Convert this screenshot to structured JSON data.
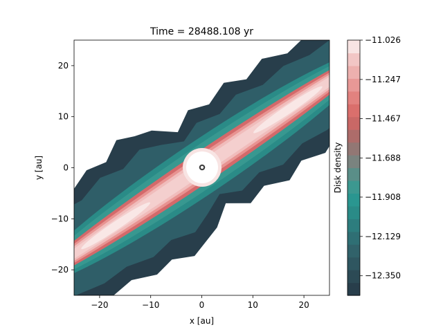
{
  "chart_data": {
    "type": "heatmap",
    "title": "Time = 28488.108 yr",
    "xlabel": "x [au]",
    "ylabel": "y [au]",
    "xlim": [
      -25,
      25
    ],
    "ylim": [
      -25,
      25
    ],
    "xticks": [
      -20,
      -10,
      0,
      10,
      20
    ],
    "yticks": [
      -20,
      -10,
      0,
      10,
      20
    ],
    "xtick_labels": [
      "−20",
      "−10",
      "0",
      "10",
      "20"
    ],
    "ytick_labels": [
      "−20",
      "−10",
      "0",
      "10",
      "20"
    ],
    "colorbar": {
      "label": "Disk density",
      "range": [
        -12.46,
        -11.026
      ],
      "ticks": [
        -11.026,
        -11.247,
        -11.467,
        -11.688,
        -11.908,
        -12.129,
        -12.35
      ],
      "tick_labels": [
        "−11.026",
        "−11.247",
        "−11.467",
        "−11.688",
        "−11.908",
        "−12.129",
        "−12.350"
      ],
      "levels": 20,
      "colors": [
        "#283e4b",
        "#2c4a55",
        "#2f5660",
        "#31626a",
        "#2f6f74",
        "#2d7d7e",
        "#2a8b87",
        "#2a9690",
        "#3c9890",
        "#5a8e88",
        "#7a837f",
        "#927774",
        "#ad6c6a",
        "#c96866",
        "#da6f6c",
        "#e2827f",
        "#e89896",
        "#edb0ae",
        "#f2c6c5",
        "#f8e4e3"
      ]
    },
    "grid": false,
    "center_marker": "ring",
    "disk_orientation_deg": -34
  }
}
